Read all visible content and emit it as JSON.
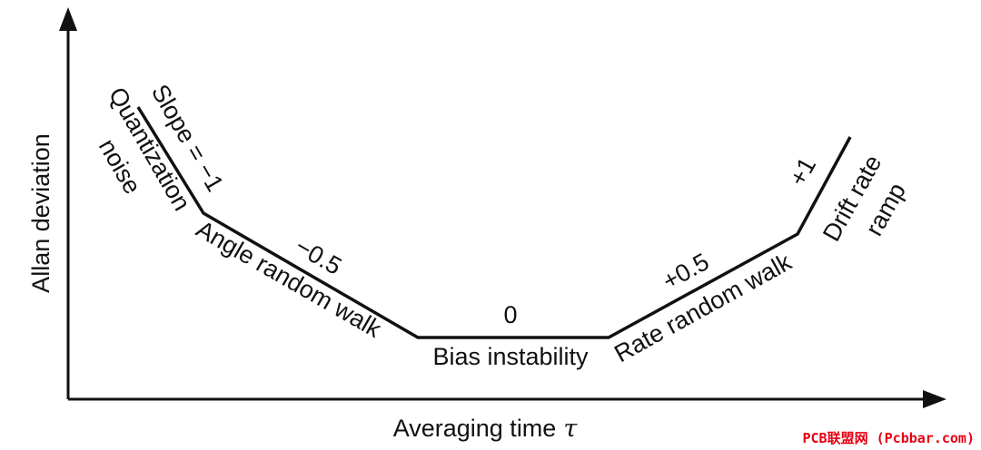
{
  "colors": {
    "line": "#111111",
    "text": "#111111",
    "watermark": "#e60012"
  },
  "axes": {
    "y_label": "Allan deviation",
    "x_label": "Averaging time",
    "x_label_symbol": "τ"
  },
  "segments": {
    "quantization": {
      "slope": "Slope = −1",
      "name_line1": "Quantization",
      "name_line2": "noise"
    },
    "angle_random_walk": {
      "slope": "−0.5",
      "name": "Angle random walk"
    },
    "bias_instability": {
      "slope": "0",
      "name": "Bias instability"
    },
    "rate_random_walk": {
      "slope": "+0.5",
      "name": "Rate random walk"
    },
    "drift_rate_ramp": {
      "slope": "+1",
      "name_line1": "Drift rate",
      "name_line2": "ramp"
    }
  },
  "watermark": "PCB联盟网 (Pcbbar.com)"
}
